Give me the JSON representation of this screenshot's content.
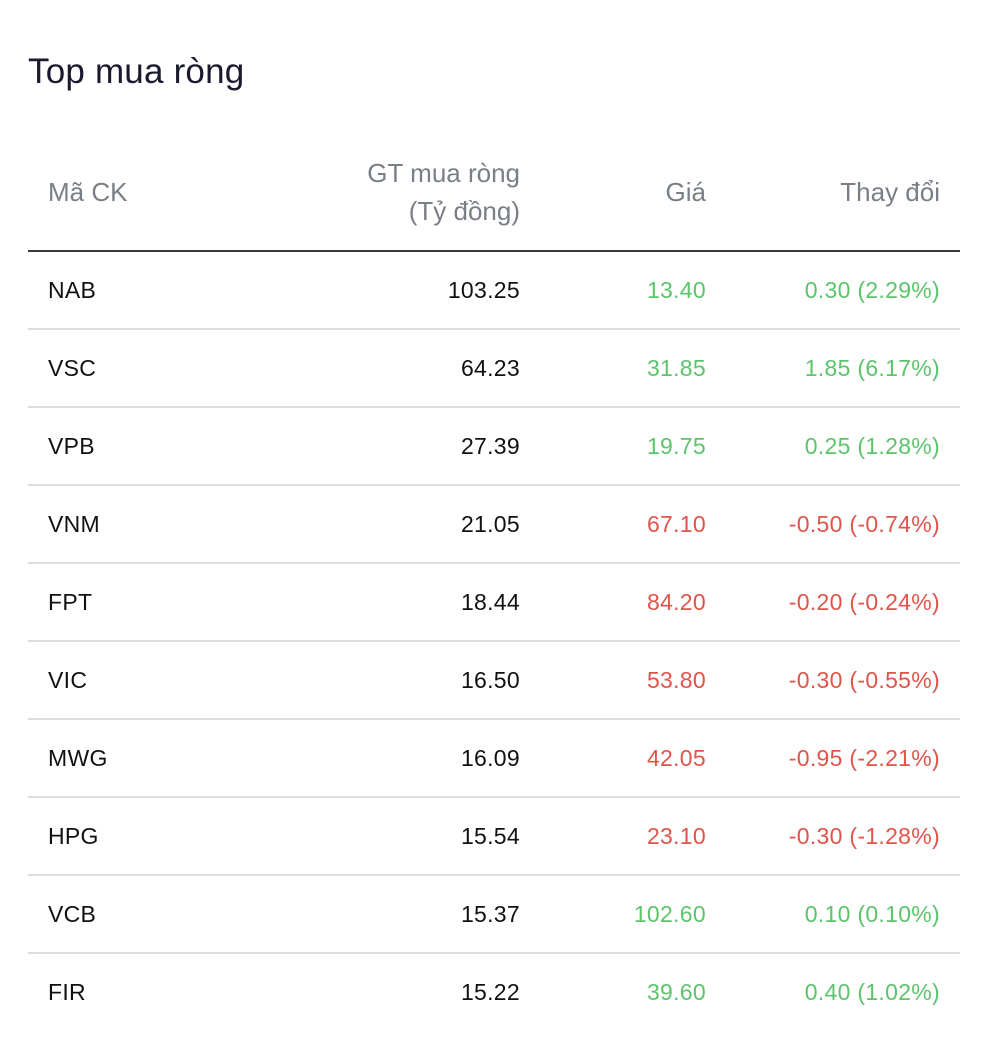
{
  "widget": {
    "title": "Top mua ròng"
  },
  "colors": {
    "up": "#5cc46a",
    "down": "#e0544a",
    "header_text": "#7a7f87",
    "divider": "#dcdcdc"
  },
  "table": {
    "headers": {
      "code": "Mã CK",
      "net_line1": "GT mua ròng",
      "net_line2": "(Tỷ đồng)",
      "price": "Giá",
      "change": "Thay đổi"
    },
    "rows": [
      {
        "code": "NAB",
        "net": "103.25",
        "price": "13.40",
        "change": "0.30 (2.29%)",
        "trend": "up"
      },
      {
        "code": "VSC",
        "net": "64.23",
        "price": "31.85",
        "change": "1.85 (6.17%)",
        "trend": "up"
      },
      {
        "code": "VPB",
        "net": "27.39",
        "price": "19.75",
        "change": "0.25 (1.28%)",
        "trend": "up"
      },
      {
        "code": "VNM",
        "net": "21.05",
        "price": "67.10",
        "change": "-0.50 (-0.74%)",
        "trend": "down"
      },
      {
        "code": "FPT",
        "net": "18.44",
        "price": "84.20",
        "change": "-0.20 (-0.24%)",
        "trend": "down"
      },
      {
        "code": "VIC",
        "net": "16.50",
        "price": "53.80",
        "change": "-0.30 (-0.55%)",
        "trend": "down"
      },
      {
        "code": "MWG",
        "net": "16.09",
        "price": "42.05",
        "change": "-0.95 (-2.21%)",
        "trend": "down"
      },
      {
        "code": "HPG",
        "net": "15.54",
        "price": "23.10",
        "change": "-0.30 (-1.28%)",
        "trend": "down"
      },
      {
        "code": "VCB",
        "net": "15.37",
        "price": "102.60",
        "change": "0.10 (0.10%)",
        "trend": "up"
      },
      {
        "code": "FIR",
        "net": "15.22",
        "price": "39.60",
        "change": "0.40 (1.02%)",
        "trend": "up"
      }
    ]
  }
}
